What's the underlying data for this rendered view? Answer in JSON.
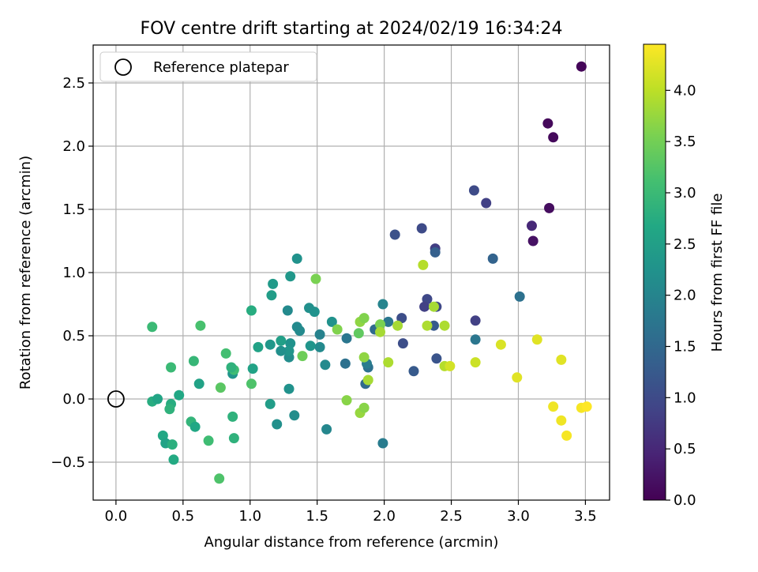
{
  "chart_data": {
    "type": "scatter",
    "title": "FOV centre drift starting at 2024/02/19 16:34:24",
    "xlabel": "Angular distance from reference (arcmin)",
    "ylabel": "Rotation from reference (arcmin)",
    "xlim": [
      -0.17,
      3.68
    ],
    "ylim": [
      -0.8,
      2.8
    ],
    "xticks": [
      "0.0",
      "0.5",
      "1.0",
      "1.5",
      "2.0",
      "2.5",
      "3.0",
      "3.5"
    ],
    "yticks": [
      "−0.5",
      "0.0",
      "0.5",
      "1.0",
      "1.5",
      "2.0",
      "2.5"
    ],
    "grid": true,
    "colormap": "viridis",
    "colorbar": {
      "label": "Hours from first FF file",
      "range": [
        0.0,
        4.45
      ],
      "ticks": [
        "0.0",
        "0.5",
        "1.0",
        "1.5",
        "2.0",
        "2.5",
        "3.0",
        "3.5",
        "4.0"
      ]
    },
    "legend": {
      "placement": "top-left",
      "entries": [
        "Reference platepar"
      ]
    },
    "reference_point": {
      "x": 0.0,
      "y": 0.0
    },
    "points": [
      {
        "x": 3.47,
        "y": 2.63,
        "c": 0.05
      },
      {
        "x": 3.22,
        "y": 2.18,
        "c": 0.1
      },
      {
        "x": 3.26,
        "y": 2.07,
        "c": 0.1
      },
      {
        "x": 3.23,
        "y": 1.51,
        "c": 0.15
      },
      {
        "x": 3.1,
        "y": 1.37,
        "c": 0.5
      },
      {
        "x": 3.11,
        "y": 1.25,
        "c": 0.2
      },
      {
        "x": 2.67,
        "y": 1.65,
        "c": 1.0
      },
      {
        "x": 2.76,
        "y": 1.55,
        "c": 0.85
      },
      {
        "x": 2.81,
        "y": 1.11,
        "c": 1.4
      },
      {
        "x": 2.28,
        "y": 1.35,
        "c": 1.0
      },
      {
        "x": 2.38,
        "y": 1.19,
        "c": 0.8
      },
      {
        "x": 2.38,
        "y": 1.16,
        "c": 1.35
      },
      {
        "x": 2.08,
        "y": 1.3,
        "c": 1.1
      },
      {
        "x": 3.01,
        "y": 0.81,
        "c": 1.65
      },
      {
        "x": 2.68,
        "y": 0.62,
        "c": 0.85
      },
      {
        "x": 2.68,
        "y": 0.47,
        "c": 1.75
      },
      {
        "x": 2.32,
        "y": 0.79,
        "c": 0.95
      },
      {
        "x": 2.3,
        "y": 0.73,
        "c": 0.85
      },
      {
        "x": 2.39,
        "y": 0.73,
        "c": 0.95
      },
      {
        "x": 2.37,
        "y": 0.58,
        "c": 1.25
      },
      {
        "x": 2.13,
        "y": 0.64,
        "c": 1.05
      },
      {
        "x": 2.14,
        "y": 0.44,
        "c": 1.05
      },
      {
        "x": 2.22,
        "y": 0.22,
        "c": 1.25
      },
      {
        "x": 2.39,
        "y": 0.32,
        "c": 1.15
      },
      {
        "x": 2.03,
        "y": 0.61,
        "c": 1.75
      },
      {
        "x": 1.99,
        "y": 0.75,
        "c": 2.0
      },
      {
        "x": 1.93,
        "y": 0.55,
        "c": 1.55
      },
      {
        "x": 1.88,
        "y": 0.25,
        "c": 1.65
      },
      {
        "x": 1.87,
        "y": 0.28,
        "c": 1.85
      },
      {
        "x": 1.86,
        "y": 0.12,
        "c": 1.55
      },
      {
        "x": 1.99,
        "y": -0.35,
        "c": 1.85
      },
      {
        "x": 1.72,
        "y": 0.48,
        "c": 1.75
      },
      {
        "x": 1.71,
        "y": 0.28,
        "c": 1.65
      },
      {
        "x": 1.56,
        "y": 0.27,
        "c": 2.1
      },
      {
        "x": 1.57,
        "y": -0.24,
        "c": 2.05
      },
      {
        "x": 1.52,
        "y": 0.51,
        "c": 1.95
      },
      {
        "x": 1.52,
        "y": 0.41,
        "c": 2.1
      },
      {
        "x": 1.61,
        "y": 0.61,
        "c": 2.25
      },
      {
        "x": 1.48,
        "y": 0.69,
        "c": 2.25
      },
      {
        "x": 1.44,
        "y": 0.72,
        "c": 2.2
      },
      {
        "x": 1.45,
        "y": 0.42,
        "c": 2.3
      },
      {
        "x": 1.35,
        "y": 1.11,
        "c": 2.25
      },
      {
        "x": 1.3,
        "y": 0.97,
        "c": 2.35
      },
      {
        "x": 1.35,
        "y": 0.57,
        "c": 2.1
      },
      {
        "x": 1.37,
        "y": 0.54,
        "c": 2.1
      },
      {
        "x": 1.28,
        "y": 0.7,
        "c": 2.1
      },
      {
        "x": 1.3,
        "y": 0.44,
        "c": 2.25
      },
      {
        "x": 1.29,
        "y": 0.33,
        "c": 2.15
      },
      {
        "x": 1.29,
        "y": 0.38,
        "c": 2.3
      },
      {
        "x": 1.23,
        "y": 0.46,
        "c": 2.5
      },
      {
        "x": 1.23,
        "y": 0.38,
        "c": 2.2
      },
      {
        "x": 1.29,
        "y": 0.08,
        "c": 2.25
      },
      {
        "x": 1.33,
        "y": -0.13,
        "c": 2.15
      },
      {
        "x": 1.17,
        "y": 0.91,
        "c": 2.4
      },
      {
        "x": 1.16,
        "y": 0.82,
        "c": 2.45
      },
      {
        "x": 1.15,
        "y": 0.43,
        "c": 2.35
      },
      {
        "x": 1.15,
        "y": -0.04,
        "c": 2.45
      },
      {
        "x": 1.2,
        "y": -0.2,
        "c": 2.2
      },
      {
        "x": 1.01,
        "y": 0.7,
        "c": 2.75
      },
      {
        "x": 1.06,
        "y": 0.41,
        "c": 2.55
      },
      {
        "x": 1.02,
        "y": 0.24,
        "c": 2.55
      },
      {
        "x": 1.01,
        "y": 0.12,
        "c": 3.2
      },
      {
        "x": 0.87,
        "y": 0.2,
        "c": 2.3
      },
      {
        "x": 0.88,
        "y": 0.23,
        "c": 3.05
      },
      {
        "x": 0.86,
        "y": 0.25,
        "c": 2.85
      },
      {
        "x": 0.87,
        "y": -0.14,
        "c": 2.85
      },
      {
        "x": 0.88,
        "y": -0.31,
        "c": 2.85
      },
      {
        "x": 0.82,
        "y": 0.36,
        "c": 3.1
      },
      {
        "x": 0.78,
        "y": 0.09,
        "c": 3.3
      },
      {
        "x": 0.77,
        "y": -0.63,
        "c": 3.2
      },
      {
        "x": 0.63,
        "y": 0.58,
        "c": 3.15
      },
      {
        "x": 0.58,
        "y": 0.3,
        "c": 2.95
      },
      {
        "x": 0.62,
        "y": 0.12,
        "c": 2.55
      },
      {
        "x": 0.56,
        "y": -0.18,
        "c": 2.9
      },
      {
        "x": 0.59,
        "y": -0.22,
        "c": 2.65
      },
      {
        "x": 0.69,
        "y": -0.33,
        "c": 3.05
      },
      {
        "x": 0.47,
        "y": 0.03,
        "c": 2.65
      },
      {
        "x": 0.41,
        "y": 0.25,
        "c": 3.0
      },
      {
        "x": 0.41,
        "y": -0.04,
        "c": 2.75
      },
      {
        "x": 0.4,
        "y": -0.08,
        "c": 2.85
      },
      {
        "x": 0.43,
        "y": -0.48,
        "c": 2.7
      },
      {
        "x": 0.35,
        "y": -0.29,
        "c": 2.65
      },
      {
        "x": 0.37,
        "y": -0.35,
        "c": 2.55
      },
      {
        "x": 0.42,
        "y": -0.36,
        "c": 2.8
      },
      {
        "x": 0.27,
        "y": 0.57,
        "c": 3.0
      },
      {
        "x": 0.27,
        "y": -0.02,
        "c": 2.75
      },
      {
        "x": 0.31,
        "y": 0.0,
        "c": 2.6
      },
      {
        "x": 1.49,
        "y": 0.95,
        "c": 3.55
      },
      {
        "x": 1.65,
        "y": 0.55,
        "c": 3.6
      },
      {
        "x": 1.39,
        "y": 0.34,
        "c": 3.45
      },
      {
        "x": 1.72,
        "y": -0.01,
        "c": 3.65
      },
      {
        "x": 1.81,
        "y": 0.52,
        "c": 3.35
      },
      {
        "x": 1.82,
        "y": 0.61,
        "c": 3.7
      },
      {
        "x": 1.85,
        "y": 0.64,
        "c": 3.6
      },
      {
        "x": 1.85,
        "y": 0.33,
        "c": 3.7
      },
      {
        "x": 1.88,
        "y": 0.15,
        "c": 3.85
      },
      {
        "x": 1.82,
        "y": -0.11,
        "c": 3.75
      },
      {
        "x": 1.85,
        "y": -0.07,
        "c": 3.65
      },
      {
        "x": 1.97,
        "y": 0.59,
        "c": 3.55
      },
      {
        "x": 1.97,
        "y": 0.53,
        "c": 3.85
      },
      {
        "x": 2.1,
        "y": 0.58,
        "c": 3.85
      },
      {
        "x": 2.03,
        "y": 0.29,
        "c": 3.9
      },
      {
        "x": 2.29,
        "y": 1.06,
        "c": 3.95
      },
      {
        "x": 2.32,
        "y": 0.58,
        "c": 3.9
      },
      {
        "x": 2.37,
        "y": 0.73,
        "c": 3.85
      },
      {
        "x": 2.45,
        "y": 0.58,
        "c": 3.9
      },
      {
        "x": 2.45,
        "y": 0.26,
        "c": 3.95
      },
      {
        "x": 2.49,
        "y": 0.26,
        "c": 4.15
      },
      {
        "x": 2.68,
        "y": 0.29,
        "c": 4.1
      },
      {
        "x": 2.87,
        "y": 0.43,
        "c": 4.2
      },
      {
        "x": 2.99,
        "y": 0.17,
        "c": 4.25
      },
      {
        "x": 3.14,
        "y": 0.47,
        "c": 4.25
      },
      {
        "x": 3.32,
        "y": 0.31,
        "c": 4.25
      },
      {
        "x": 3.26,
        "y": -0.06,
        "c": 4.35
      },
      {
        "x": 3.32,
        "y": -0.17,
        "c": 4.35
      },
      {
        "x": 3.36,
        "y": -0.29,
        "c": 4.4
      },
      {
        "x": 3.47,
        "y": -0.07,
        "c": 4.4
      },
      {
        "x": 3.51,
        "y": -0.06,
        "c": 4.45
      }
    ]
  }
}
